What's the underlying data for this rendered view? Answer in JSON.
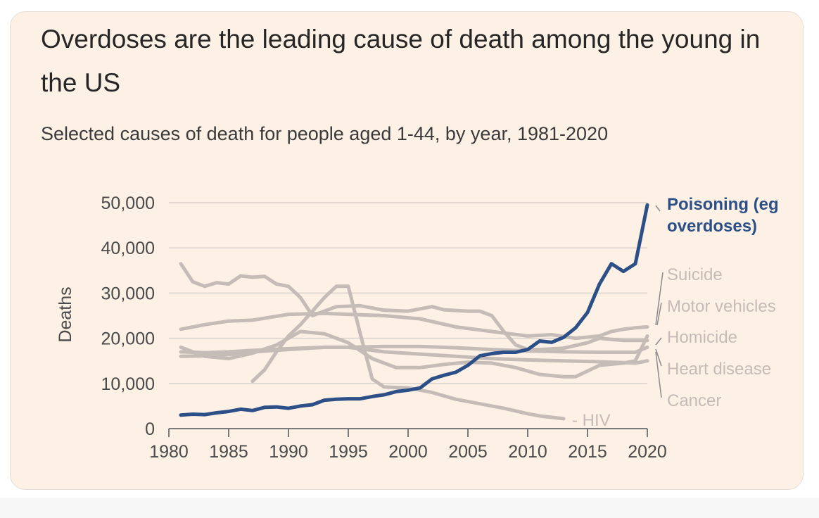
{
  "title": "Overdoses are the leading cause of death among the young in the US",
  "subtitle": "Selected causes of death for people aged 1-44, by year, 1981-2020",
  "colors": {
    "background": "#fdf1e6",
    "highlight": "#2b4f86",
    "muted": "#c5bcb7",
    "grid": "#d9d2cc",
    "axis_text": "#4a4a4a"
  },
  "chart_data": {
    "type": "line",
    "title": "Overdoses are the leading cause of death among the young in the US",
    "subtitle": "Selected causes of death for people aged 1-44, by year, 1981-2020",
    "xlabel": "",
    "ylabel": "Deaths",
    "xlim": [
      1980,
      2020
    ],
    "ylim": [
      0,
      50000
    ],
    "x_ticks": [
      "1980",
      "1985",
      "1990",
      "1995",
      "2000",
      "2005",
      "2010",
      "2015",
      "2020"
    ],
    "x_tick_values": [
      1980,
      1985,
      1990,
      1995,
      2000,
      2005,
      2010,
      2015,
      2020
    ],
    "y_ticks": [
      "0",
      "10,000",
      "20,000",
      "30,000",
      "40,000",
      "50,000"
    ],
    "y_tick_values": [
      0,
      10000,
      20000,
      30000,
      40000,
      50000
    ],
    "grid": true,
    "legend": "direct labels at right",
    "series": [
      {
        "name": "Cancer",
        "x": [
          1981,
          1983,
          1985,
          1987,
          1990,
          1993,
          1995,
          1998,
          2001,
          2004,
          2007,
          2010,
          2013,
          2016,
          2019,
          2020
        ],
        "values": [
          16000,
          16100,
          16400,
          17000,
          17500,
          18000,
          18000,
          17000,
          16500,
          16000,
          15500,
          15200,
          15000,
          14800,
          14500,
          15000
        ]
      },
      {
        "name": "Heart disease",
        "x": [
          1981,
          1983,
          1985,
          1987,
          1990,
          1993,
          1995,
          1998,
          2001,
          2004,
          2007,
          2010,
          2013,
          2016,
          2019,
          2020
        ],
        "values": [
          17000,
          16800,
          17000,
          17300,
          17700,
          18000,
          18000,
          18200,
          18200,
          17900,
          17500,
          17200,
          17000,
          16900,
          16900,
          18000
        ]
      },
      {
        "name": "Homicide",
        "x": [
          1981,
          1983,
          1985,
          1987,
          1989,
          1991,
          1993,
          1995,
          1997,
          1999,
          2001,
          2003,
          2005,
          2007,
          2009,
          2011,
          2013,
          2014,
          2016,
          2018,
          2019,
          2020
        ],
        "values": [
          18000,
          16000,
          15500,
          16700,
          18500,
          21500,
          21000,
          19000,
          15500,
          13500,
          13500,
          14200,
          14700,
          14500,
          13500,
          12000,
          11500,
          11500,
          14000,
          14500,
          15000,
          20500
        ]
      },
      {
        "name": "Motor vehicles",
        "x": [
          1981,
          1982,
          1983,
          1984,
          1985,
          1986,
          1987,
          1988,
          1989,
          1990,
          1991,
          1992,
          1994,
          1996,
          1998,
          2000,
          2002,
          2003,
          2005,
          2006,
          2007,
          2008,
          2009,
          2010,
          2011,
          2013,
          2015,
          2016,
          2018,
          2020
        ],
        "values": [
          36500,
          32500,
          31500,
          32300,
          32000,
          33800,
          33500,
          33700,
          32000,
          31500,
          29000,
          25000,
          27000,
          27200,
          26200,
          26000,
          27000,
          26300,
          26000,
          26000,
          25000,
          21500,
          18500,
          17500,
          17500,
          17800,
          19000,
          20000,
          19500,
          19500
        ]
      },
      {
        "name": "Suicide",
        "x": [
          1981,
          1983,
          1985,
          1987,
          1990,
          1993,
          1995,
          1998,
          2001,
          2004,
          2007,
          2010,
          2012,
          2014,
          2016,
          2017,
          2018,
          2019,
          2020
        ],
        "values": [
          22000,
          23000,
          23800,
          24000,
          25300,
          25500,
          25300,
          25000,
          24300,
          22500,
          21500,
          20500,
          20800,
          20000,
          20500,
          21500,
          22000,
          22300,
          22500
        ]
      },
      {
        "name": "HIV",
        "x": [
          1987,
          1988,
          1989,
          1990,
          1991,
          1992,
          1993,
          1994,
          1995,
          1996,
          1997,
          1998,
          2000,
          2002,
          2004,
          2006,
          2008,
          2010,
          2011,
          2013
        ],
        "values": [
          10500,
          13000,
          17000,
          20500,
          23000,
          26000,
          29000,
          31500,
          31500,
          21000,
          11000,
          9200,
          9000,
          8000,
          6500,
          5500,
          4500,
          3300,
          2800,
          2200
        ]
      },
      {
        "name": "Poisoning (eg overdoses)",
        "highlight": true,
        "x": [
          1981,
          1982,
          1983,
          1984,
          1985,
          1986,
          1987,
          1988,
          1989,
          1990,
          1991,
          1992,
          1993,
          1994,
          1995,
          1996,
          1997,
          1998,
          1999,
          2000,
          2001,
          2002,
          2003,
          2004,
          2005,
          2006,
          2007,
          2008,
          2009,
          2010,
          2011,
          2012,
          2013,
          2014,
          2015,
          2016,
          2017,
          2018,
          2019,
          2020
        ],
        "values": [
          3000,
          3200,
          3100,
          3500,
          3800,
          4300,
          4000,
          4700,
          4800,
          4500,
          5000,
          5300,
          6300,
          6500,
          6600,
          6600,
          7100,
          7500,
          8200,
          8500,
          9000,
          11000,
          11800,
          12500,
          14000,
          16100,
          16600,
          16900,
          16900,
          17500,
          19400,
          19100,
          20200,
          22300,
          25700,
          32000,
          36500,
          34800,
          36500,
          49500
        ]
      }
    ],
    "labels": [
      {
        "text": "Poisoning (eg overdoses)",
        "lines": [
          "Poisoning (eg",
          "overdoses)"
        ],
        "highlight": true
      },
      {
        "text": "Suicide",
        "lines": [
          "Suicide"
        ]
      },
      {
        "text": "Motor vehicles",
        "lines": [
          "Motor vehicles"
        ]
      },
      {
        "text": "Homicide",
        "lines": [
          "Homicide"
        ]
      },
      {
        "text": "Heart disease",
        "lines": [
          "Heart disease"
        ]
      },
      {
        "text": "Cancer",
        "lines": [
          "Cancer"
        ]
      },
      {
        "text": "- HIV",
        "lines": [
          "- HIV"
        ]
      }
    ]
  }
}
